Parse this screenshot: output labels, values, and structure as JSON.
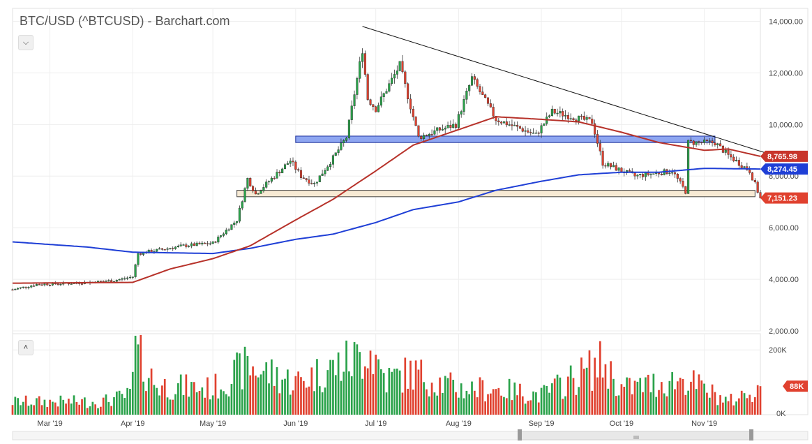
{
  "title": "BTC/USD (^BTCUSD) - Barchart.com",
  "controls": {
    "collapse_price_icon": "chevron-down-icon",
    "collapse_volume_icon": "chevron-up-icon"
  },
  "colors": {
    "up": "#2aa24a",
    "down": "#e0412f",
    "ma_short": "#b7322a",
    "ma_long": "#1f3fd6",
    "zone_blue": "#7a96ee",
    "zone_tan": "#f6e8cf"
  },
  "chart_data": [
    {
      "type": "candlestick",
      "title": "BTC/USD (^BTCUSD) - Barchart.com",
      "x_range": [
        "2019-02-15",
        "2019-11-22"
      ],
      "x_ticks": [
        {
          "date": "2019-03-01",
          "label": "Mar '19"
        },
        {
          "date": "2019-04-01",
          "label": "Apr '19"
        },
        {
          "date": "2019-05-01",
          "label": "May '19"
        },
        {
          "date": "2019-06-01",
          "label": "Jun '19"
        },
        {
          "date": "2019-07-01",
          "label": "Jul '19"
        },
        {
          "date": "2019-08-01",
          "label": "Aug '19"
        },
        {
          "date": "2019-09-01",
          "label": "Sep '19"
        },
        {
          "date": "2019-10-01",
          "label": "Oct '19"
        },
        {
          "date": "2019-11-01",
          "label": "Nov '19"
        }
      ],
      "ylim": [
        2000,
        14500
      ],
      "y_ticks": [
        2000,
        4000,
        6000,
        8000,
        10000,
        12000,
        14000
      ],
      "y_tick_labels": [
        "2,000.00",
        "4,000.00",
        "6,000.00",
        "8,000.00",
        "10,000.00",
        "12,000.00",
        "14,000.00"
      ],
      "grid": true,
      "price_key": [
        [
          "2019-02-15",
          3600
        ],
        [
          "2019-02-24",
          3800
        ],
        [
          "2019-03-10",
          3850
        ],
        [
          "2019-03-25",
          3950
        ],
        [
          "2019-04-01",
          4100
        ],
        [
          "2019-04-03",
          5000
        ],
        [
          "2019-04-20",
          5300
        ],
        [
          "2019-05-01",
          5400
        ],
        [
          "2019-05-10",
          6300
        ],
        [
          "2019-05-14",
          7900
        ],
        [
          "2019-05-17",
          7300
        ],
        [
          "2019-05-30",
          8600
        ],
        [
          "2019-06-03",
          8000
        ],
        [
          "2019-06-08",
          7700
        ],
        [
          "2019-06-15",
          8700
        ],
        [
          "2019-06-20",
          9500
        ],
        [
          "2019-06-26",
          12900
        ],
        [
          "2019-06-28",
          11000
        ],
        [
          "2019-07-01",
          10600
        ],
        [
          "2019-07-10",
          12300
        ],
        [
          "2019-07-17",
          9500
        ],
        [
          "2019-07-25",
          9800
        ],
        [
          "2019-07-31",
          10000
        ],
        [
          "2019-08-06",
          11800
        ],
        [
          "2019-08-15",
          10200
        ],
        [
          "2019-08-30",
          9600
        ],
        [
          "2019-09-05",
          10500
        ],
        [
          "2019-09-20",
          10100
        ],
        [
          "2019-09-24",
          8500
        ],
        [
          "2019-10-06",
          8000
        ],
        [
          "2019-10-20",
          8200
        ],
        [
          "2019-10-25",
          7400
        ],
        [
          "2019-10-26",
          9300
        ],
        [
          "2019-11-05",
          9300
        ],
        [
          "2019-11-10",
          8800
        ],
        [
          "2019-11-18",
          8200
        ],
        [
          "2019-11-22",
          7151
        ]
      ],
      "ma_short_key": [
        [
          "2019-02-15",
          3850
        ],
        [
          "2019-04-01",
          3880
        ],
        [
          "2019-04-15",
          4400
        ],
        [
          "2019-05-01",
          4800
        ],
        [
          "2019-05-15",
          5300
        ],
        [
          "2019-06-01",
          6300
        ],
        [
          "2019-06-15",
          7100
        ],
        [
          "2019-07-01",
          8200
        ],
        [
          "2019-07-15",
          9200
        ],
        [
          "2019-08-01",
          9800
        ],
        [
          "2019-08-15",
          10300
        ],
        [
          "2019-09-01",
          10200
        ],
        [
          "2019-09-15",
          10100
        ],
        [
          "2019-10-01",
          9700
        ],
        [
          "2019-10-15",
          9300
        ],
        [
          "2019-11-01",
          9000
        ],
        [
          "2019-11-10",
          9050
        ],
        [
          "2019-11-22",
          8766
        ]
      ],
      "ma_long_key": [
        [
          "2019-02-15",
          5450
        ],
        [
          "2019-03-15",
          5250
        ],
        [
          "2019-04-01",
          5050
        ],
        [
          "2019-05-01",
          5000
        ],
        [
          "2019-05-15",
          5200
        ],
        [
          "2019-06-01",
          5550
        ],
        [
          "2019-06-15",
          5750
        ],
        [
          "2019-07-01",
          6200
        ],
        [
          "2019-07-15",
          6700
        ],
        [
          "2019-08-01",
          7000
        ],
        [
          "2019-08-15",
          7450
        ],
        [
          "2019-09-01",
          7800
        ],
        [
          "2019-09-15",
          8050
        ],
        [
          "2019-10-01",
          8150
        ],
        [
          "2019-10-15",
          8150
        ],
        [
          "2019-11-01",
          8300
        ],
        [
          "2019-11-22",
          8274
        ]
      ],
      "last_values": [
        {
          "value": 8765.98,
          "label": "8,765.98",
          "color": "#c8352b"
        },
        {
          "value": 8274.45,
          "label": "8,274.45",
          "color": "#1f3fd6"
        },
        {
          "value": 7151.23,
          "label": "7,151.23",
          "color": "#e0412f"
        }
      ],
      "annotations": {
        "resistance_zone": {
          "x_start": "2019-06-01",
          "x_end": "2019-11-05",
          "y_low": 9300,
          "y_high": 9550
        },
        "support_zone": {
          "x_start": "2019-05-10",
          "x_end": "2019-11-20",
          "y_low": 7200,
          "y_high": 7450
        },
        "trendline": {
          "x_start": "2019-06-26",
          "y_start": 13800,
          "x_end": "2019-11-24",
          "y_end": 8900
        }
      }
    },
    {
      "type": "bar",
      "title": "Volume",
      "ylim": [
        0,
        250000
      ],
      "y_ticks": [
        0,
        200000
      ],
      "y_tick_labels": [
        "0K",
        "200K"
      ],
      "volume_key": [
        [
          "2019-02-15",
          40000
        ],
        [
          "2019-03-20",
          40000
        ],
        [
          "2019-03-31",
          60000
        ],
        [
          "2019-04-02",
          190000
        ],
        [
          "2019-04-10",
          90000
        ],
        [
          "2019-05-01",
          80000
        ],
        [
          "2019-05-14",
          150000
        ],
        [
          "2019-06-01",
          100000
        ],
        [
          "2019-06-26",
          180000
        ],
        [
          "2019-06-27",
          230000
        ],
        [
          "2019-07-05",
          110000
        ],
        [
          "2019-07-15",
          130000
        ],
        [
          "2019-08-01",
          80000
        ],
        [
          "2019-08-15",
          80000
        ],
        [
          "2019-09-01",
          60000
        ],
        [
          "2019-09-24",
          160000
        ],
        [
          "2019-10-01",
          80000
        ],
        [
          "2019-10-25",
          110000
        ],
        [
          "2019-10-27",
          100000
        ],
        [
          "2019-11-10",
          40000
        ],
        [
          "2019-11-21",
          80000
        ]
      ],
      "last_value": {
        "value": 88000,
        "label": "88K",
        "color": "#e0412f"
      }
    }
  ]
}
